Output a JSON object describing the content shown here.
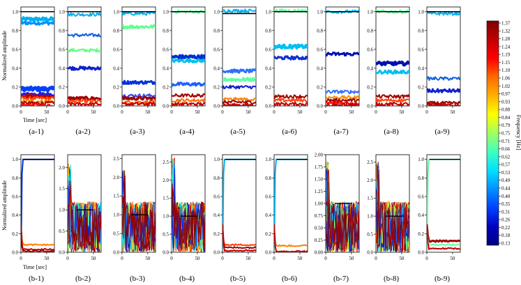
{
  "figure": {
    "ylabel": "Normalized amplitude",
    "xlabel": "Time [sec]",
    "colorbar_label": "Frequency [Hz]"
  },
  "colorbar": {
    "ticks": [
      "1.37",
      "1.32",
      "1.28",
      "1.24",
      "1.19",
      "1.15",
      "1.10",
      "1.06",
      "1.02",
      "0.97",
      "0.93",
      "0.88",
      "0.84",
      "0.79",
      "0.75",
      "0.71",
      "0.66",
      "0.62",
      "0.57",
      "0.53",
      "0.49",
      "0.44",
      "0.40",
      "0.35",
      "0.31",
      "0.26",
      "0.22",
      "0.18",
      "0.13"
    ],
    "colors": [
      "#7f0000",
      "#c00000",
      "#ff0000",
      "#ff6a00",
      "#ffb000",
      "#ffff00",
      "#a0ff60",
      "#40ffc0",
      "#00e0ff",
      "#0090ff",
      "#0040ff",
      "#0000c0",
      "#00007f"
    ]
  },
  "chart_data": [
    {
      "panel": "(a-1)",
      "type": "line",
      "x": [
        0,
        65
      ],
      "xticks": [
        "0",
        "50"
      ],
      "ylim": [
        0,
        1.05
      ],
      "yticks": [
        "0.0",
        "0.2",
        "0.4",
        "0.6",
        "0.8",
        "1.0"
      ],
      "levels": [
        {
          "y": 0.92,
          "c": "#00b0f0",
          "w": 4
        },
        {
          "y": 0.88,
          "c": "#0090ff",
          "w": 3
        },
        {
          "y": 0.18,
          "c": "#0040ff",
          "w": 5
        },
        {
          "y": 0.12,
          "c": "#2020e0",
          "w": 4
        },
        {
          "y": 0.1,
          "c": "#c00000",
          "w": 3
        },
        {
          "y": 0.08,
          "c": "#ff4000",
          "w": 2
        },
        {
          "y": 0.05,
          "c": "#ff9000",
          "w": 2
        },
        {
          "y": 0.03,
          "c": "#a00000",
          "w": 2
        },
        {
          "y": 0.01,
          "c": "#ff0000",
          "w": 2
        }
      ],
      "reference": 1.0
    },
    {
      "panel": "(a-2)",
      "type": "line",
      "x": [
        0,
        65
      ],
      "xticks": [
        "0",
        "50"
      ],
      "ylim": [
        0,
        1.05
      ],
      "yticks": [
        "0.0",
        "0.2",
        "0.4",
        "0.6",
        "0.8",
        "1.0"
      ],
      "levels": [
        {
          "y": 0.97,
          "c": "#00b0f0",
          "w": 2
        },
        {
          "y": 0.75,
          "c": "#1060e0",
          "w": 2
        },
        {
          "y": 0.59,
          "c": "#60ff80",
          "w": 2
        },
        {
          "y": 0.4,
          "c": "#1020d0",
          "w": 3
        },
        {
          "y": 0.08,
          "c": "#a00000",
          "w": 3
        },
        {
          "y": 0.05,
          "c": "#ff4000",
          "w": 2
        },
        {
          "y": 0.02,
          "c": "#c00000",
          "w": 2
        }
      ],
      "reference": 1.0
    },
    {
      "panel": "(a-3)",
      "type": "line",
      "x": [
        0,
        65
      ],
      "xticks": [
        "0",
        "50"
      ],
      "ylim": [
        0,
        1.05
      ],
      "yticks": [
        "0.0",
        "0.2",
        "0.4",
        "0.6",
        "0.8",
        "1.0"
      ],
      "levels": [
        {
          "y": 0.98,
          "c": "#00b0f0",
          "w": 2
        },
        {
          "y": 0.84,
          "c": "#60ff90",
          "w": 3
        },
        {
          "y": 0.25,
          "c": "#0030e0",
          "w": 3
        },
        {
          "y": 0.11,
          "c": "#3050ff",
          "w": 2
        },
        {
          "y": 0.08,
          "c": "#a00000",
          "w": 3
        },
        {
          "y": 0.04,
          "c": "#ff6000",
          "w": 2
        },
        {
          "y": 0.02,
          "c": "#c00000",
          "w": 2
        }
      ],
      "reference": 1.0
    },
    {
      "panel": "(a-4)",
      "type": "line",
      "x": [
        0,
        65
      ],
      "xticks": [
        "0",
        "50"
      ],
      "ylim": [
        0,
        1.05
      ],
      "yticks": [
        "0.0",
        "0.2",
        "0.4",
        "0.6",
        "0.8",
        "1.0"
      ],
      "levels": [
        {
          "y": 1.0,
          "c": "#60ffa0",
          "w": 2
        },
        {
          "y": 0.52,
          "c": "#0030d0",
          "w": 4
        },
        {
          "y": 0.48,
          "c": "#00c0f0",
          "w": 3
        },
        {
          "y": 0.23,
          "c": "#2060ff",
          "w": 3
        },
        {
          "y": 0.11,
          "c": "#a00000",
          "w": 2
        },
        {
          "y": 0.06,
          "c": "#ff7000",
          "w": 2
        },
        {
          "y": 0.02,
          "c": "#c00000",
          "w": 2
        }
      ],
      "reference": 1.0
    },
    {
      "panel": "(a-5)",
      "type": "line",
      "x": [
        0,
        65
      ],
      "xticks": [
        "0",
        "50"
      ],
      "ylim": [
        0,
        1.05
      ],
      "yticks": [
        "0.0",
        "0.2",
        "0.4",
        "0.6",
        "0.8",
        "1.0"
      ],
      "levels": [
        {
          "y": 1.01,
          "c": "#00b0f0",
          "w": 2
        },
        {
          "y": 0.37,
          "c": "#3070ff",
          "w": 3
        },
        {
          "y": 0.28,
          "c": "#60ffa0",
          "w": 3
        },
        {
          "y": 0.2,
          "c": "#1020d0",
          "w": 2
        },
        {
          "y": 0.07,
          "c": "#ff8000",
          "w": 2
        },
        {
          "y": 0.04,
          "c": "#a00000",
          "w": 2
        },
        {
          "y": 0.01,
          "c": "#c00000",
          "w": 2
        }
      ],
      "reference": 0.98
    },
    {
      "panel": "(a-6)",
      "type": "line",
      "x": [
        0,
        65
      ],
      "xticks": [
        "0",
        "50"
      ],
      "ylim": [
        0,
        1.05
      ],
      "yticks": [
        "0.0",
        "0.2",
        "0.4",
        "0.6",
        "0.8",
        "1.0"
      ],
      "levels": [
        {
          "y": 1.01,
          "c": "#60ffa0",
          "w": 2
        },
        {
          "y": 0.63,
          "c": "#00c0f0",
          "w": 4
        },
        {
          "y": 0.51,
          "c": "#1030d0",
          "w": 3
        },
        {
          "y": 0.1,
          "c": "#a00000",
          "w": 2
        },
        {
          "y": 0.06,
          "c": "#ff4000",
          "w": 2
        },
        {
          "y": 0.02,
          "c": "#c00000",
          "w": 2
        }
      ],
      "reference": 1.0
    },
    {
      "panel": "(a-7)",
      "type": "line",
      "x": [
        0,
        65
      ],
      "xticks": [
        "0",
        "50"
      ],
      "ylim": [
        0,
        1.05
      ],
      "yticks": [
        "0.0",
        "0.2",
        "0.4",
        "0.6",
        "0.8",
        "1.0"
      ],
      "levels": [
        {
          "y": 1.0,
          "c": "#00c0f0",
          "w": 2
        },
        {
          "y": 0.55,
          "c": "#0010b0",
          "w": 3
        },
        {
          "y": 0.15,
          "c": "#3070ff",
          "w": 2
        },
        {
          "y": 0.09,
          "c": "#ff9000",
          "w": 2
        },
        {
          "y": 0.06,
          "c": "#a00000",
          "w": 2
        },
        {
          "y": 0.03,
          "c": "#ff0000",
          "w": 2
        },
        {
          "y": 0.01,
          "c": "#c00000",
          "w": 2
        }
      ],
      "reference": 1.0
    },
    {
      "panel": "(a-8)",
      "type": "line",
      "x": [
        0,
        65
      ],
      "xticks": [
        "0",
        "50"
      ],
      "ylim": [
        0,
        1.05
      ],
      "yticks": [
        "0.0",
        "0.2",
        "0.4",
        "0.6",
        "0.8",
        "1.0"
      ],
      "levels": [
        {
          "y": 1.0,
          "c": "#60ffa0",
          "w": 2
        },
        {
          "y": 0.45,
          "c": "#0010b0",
          "w": 4
        },
        {
          "y": 0.36,
          "c": "#00c0f0",
          "w": 3
        },
        {
          "y": 0.1,
          "c": "#a00000",
          "w": 2
        },
        {
          "y": 0.06,
          "c": "#ff4000",
          "w": 2
        },
        {
          "y": 0.02,
          "c": "#c00000",
          "w": 2
        }
      ],
      "reference": 1.0
    },
    {
      "panel": "(a-9)",
      "type": "line",
      "x": [
        0,
        65
      ],
      "xticks": [
        "0",
        "50"
      ],
      "ylim": [
        0,
        1.05
      ],
      "yticks": [
        "0.0",
        "0.2",
        "0.4",
        "0.6",
        "0.8",
        "1.0"
      ],
      "levels": [
        {
          "y": 0.98,
          "c": "#00b0f0",
          "w": 2
        },
        {
          "y": 0.29,
          "c": "#1060e0",
          "w": 2
        },
        {
          "y": 0.16,
          "c": "#1020d0",
          "w": 3
        },
        {
          "y": 0.03,
          "c": "#a00000",
          "w": 2
        },
        {
          "y": 0.01,
          "c": "#c00000",
          "w": 2
        }
      ],
      "reference": 1.0
    },
    {
      "panel": "(b-1)",
      "type": "line",
      "x": [
        0,
        65
      ],
      "xticks": [
        "0",
        "50"
      ],
      "ylim": [
        0,
        1.05
      ],
      "yticks": [
        "0.0",
        "0.2",
        "0.4",
        "0.6",
        "0.8",
        "1.0"
      ],
      "mode": "converge",
      "top": 1.0,
      "topColor": "#0030d0",
      "levels": [
        {
          "y": 0.08,
          "c": "#ff8000",
          "w": 2
        },
        {
          "y": 0.03,
          "c": "#c00000",
          "w": 2
        },
        {
          "y": 0.01,
          "c": "#a00000",
          "w": 2
        }
      ],
      "reference": 1.0
    },
    {
      "panel": "(b-2)",
      "type": "line",
      "x": [
        0,
        65
      ],
      "xticks": [
        "0",
        "50"
      ],
      "ylim": [
        0,
        2.3
      ],
      "yticks": [
        "0.0",
        "0.5",
        "1.0",
        "1.5",
        "2.0"
      ],
      "mode": "noisy",
      "spikeTop": 2.1,
      "reference": 1.0
    },
    {
      "panel": "(b-3)",
      "type": "line",
      "x": [
        0,
        65
      ],
      "xticks": [
        "0",
        "50"
      ],
      "ylim": [
        0,
        2.6
      ],
      "yticks": [
        "0.0",
        "0.5",
        "1.0",
        "1.5",
        "2.0",
        "2.5"
      ],
      "mode": "noisy",
      "spikeTop": 2.2,
      "reference": 1.0
    },
    {
      "panel": "(b-4)",
      "type": "line",
      "x": [
        0,
        65
      ],
      "xticks": [
        "0",
        "50"
      ],
      "ylim": [
        0,
        2.7
      ],
      "yticks": [
        "0.0",
        "0.5",
        "1.0",
        "1.5",
        "2.0",
        "2.5"
      ],
      "mode": "noisy",
      "spikeTop": 2.6,
      "reference": 1.0
    },
    {
      "panel": "(b-5)",
      "type": "line",
      "x": [
        0,
        65
      ],
      "xticks": [
        "0",
        "50"
      ],
      "ylim": [
        0,
        1.05
      ],
      "yticks": [
        "0.0",
        "0.2",
        "0.4",
        "0.6",
        "0.8",
        "1.0"
      ],
      "mode": "converge",
      "top": 1.0,
      "topColor": "#00b0f0",
      "levels": [
        {
          "y": 0.08,
          "c": "#ff4000",
          "w": 2
        },
        {
          "y": 0.05,
          "c": "#a00000",
          "w": 2
        },
        {
          "y": 0.02,
          "c": "#c00000",
          "w": 2
        }
      ],
      "reference": 1.0
    },
    {
      "panel": "(b-6)",
      "type": "line",
      "x": [
        0,
        65
      ],
      "xticks": [
        "0",
        "50"
      ],
      "ylim": [
        0,
        1.05
      ],
      "yticks": [
        "0.0",
        "0.2",
        "0.4",
        "0.6",
        "0.8",
        "1.0"
      ],
      "mode": "converge",
      "top": 1.0,
      "topColor": "#00b0f0",
      "levels": [
        {
          "y": 0.07,
          "c": "#ff8000",
          "w": 2
        },
        {
          "y": 0.01,
          "c": "#c00000",
          "w": 2
        }
      ],
      "reference": 1.0
    },
    {
      "panel": "(b-7)",
      "type": "line",
      "x": [
        0,
        65
      ],
      "xticks": [
        "0",
        "50"
      ],
      "ylim": [
        0,
        2.0
      ],
      "yticks": [
        "0.00",
        "0.25",
        "0.50",
        "0.75",
        "1.00",
        "1.25",
        "1.50",
        "1.75",
        "2.00"
      ],
      "mode": "noisy",
      "spikeTop": 1.9,
      "reference": 1.0
    },
    {
      "panel": "(b-8)",
      "type": "line",
      "x": [
        0,
        65
      ],
      "xticks": [
        "0",
        "50"
      ],
      "ylim": [
        0,
        2.7
      ],
      "yticks": [
        "0.0",
        "0.5",
        "1.0",
        "1.5",
        "2.0",
        "2.5"
      ],
      "mode": "noisy",
      "spikeTop": 2.5,
      "reference": 1.0
    },
    {
      "panel": "(b-9)",
      "type": "line",
      "x": [
        0,
        65
      ],
      "xticks": [
        "0",
        "50"
      ],
      "ylim": [
        0,
        1.05
      ],
      "yticks": [
        "0.0",
        "0.2",
        "0.4",
        "0.6",
        "0.8",
        "1.0"
      ],
      "mode": "converge",
      "top": 1.0,
      "topColor": "#60ffa0",
      "levels": [
        {
          "y": 0.12,
          "c": "#a00000",
          "w": 3
        },
        {
          "y": 0.08,
          "c": "#60ffa0",
          "w": 2
        },
        {
          "y": 0.04,
          "c": "#c00000",
          "w": 2
        }
      ],
      "reference": 1.0
    }
  ]
}
